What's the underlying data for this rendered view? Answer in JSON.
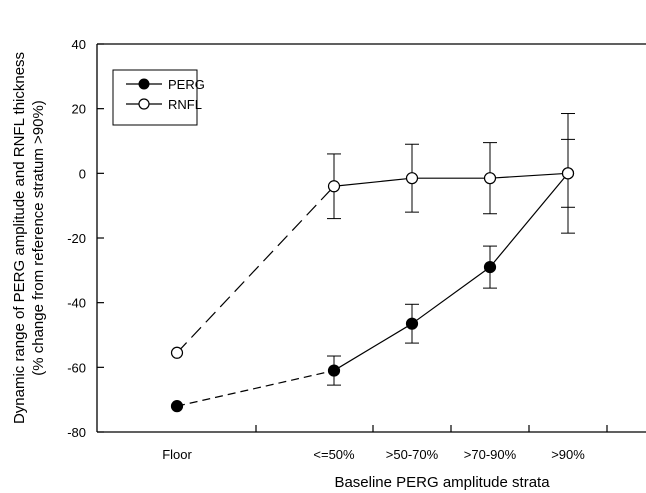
{
  "chart_data": {
    "type": "line",
    "categories": [
      "Floor",
      "<=50%",
      ">50-70%",
      ">70-90%",
      ">90%"
    ],
    "xlabel": "Baseline PERG amplitude strata",
    "ylabel_line1": "Dynamic range of PERG amplitude and RNFL thickness",
    "ylabel_line2": "(% change from reference stratum >90%)",
    "ylim": [
      -80,
      40
    ],
    "yticks": [
      -80,
      -60,
      -40,
      -20,
      0,
      20,
      40
    ],
    "grid": false,
    "legend_position": "top-left",
    "series": [
      {
        "name": "PERG",
        "marker": "filled-circle",
        "values": [
          -72,
          -61,
          -46.5,
          -29,
          0
        ],
        "error": [
          null,
          4.5,
          6,
          6.5,
          10.5
        ],
        "dashed_segments": [
          0
        ]
      },
      {
        "name": "RNFL",
        "marker": "open-circle",
        "values": [
          -55.5,
          -4,
          -1.5,
          -1.5,
          0
        ],
        "error": [
          null,
          10,
          10.5,
          11,
          18.5
        ],
        "dashed_segments": [
          0
        ]
      }
    ]
  }
}
